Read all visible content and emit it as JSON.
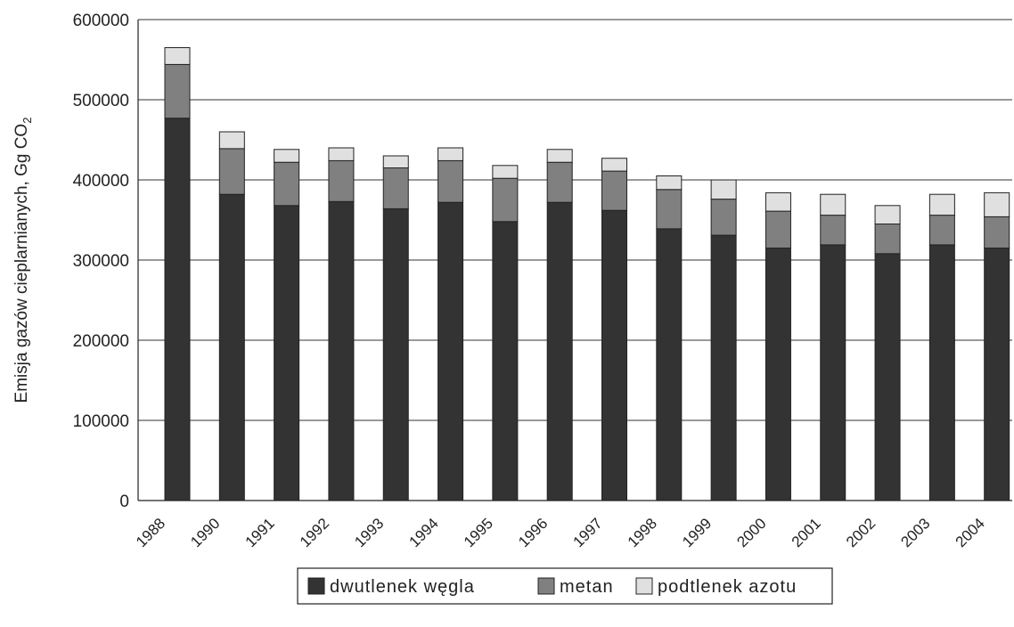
{
  "chart_data": {
    "type": "bar",
    "stacked": true,
    "ylabel_main": "Emisja gazów cieplarnianych, Gg CO",
    "ylabel_sub": "2",
    "xlabel": "",
    "ylim": [
      0,
      600000
    ],
    "yticks": [
      0,
      100000,
      200000,
      300000,
      400000,
      500000,
      600000
    ],
    "ytick_labels": [
      "0",
      "100000",
      "200000",
      "300000",
      "400000",
      "500000",
      "600000"
    ],
    "grid": true,
    "legend_position": "bottom",
    "categories": [
      "1988",
      "1990",
      "1991",
      "1992",
      "1993",
      "1994",
      "1995",
      "1996",
      "1997",
      "1998",
      "1999",
      "2000",
      "2001",
      "2002",
      "2003",
      "2004"
    ],
    "series": [
      {
        "name": "dwutlenek węgla",
        "color": "#333333",
        "values": [
          477000,
          382000,
          368000,
          373000,
          364000,
          372000,
          348000,
          372000,
          362000,
          339000,
          331000,
          315000,
          319000,
          308000,
          319000,
          315000
        ]
      },
      {
        "name": "metan",
        "color": "#808080",
        "values": [
          67000,
          57000,
          54000,
          51000,
          51000,
          52000,
          54000,
          50000,
          49000,
          49000,
          45000,
          46000,
          37000,
          37000,
          37000,
          39000
        ]
      },
      {
        "name": "podtlenek azotu",
        "color": "#e0e0e0",
        "values": [
          21000,
          21000,
          16000,
          16000,
          15000,
          16000,
          16000,
          16000,
          16000,
          17000,
          24000,
          23000,
          26000,
          23000,
          26000,
          30000
        ]
      }
    ]
  }
}
